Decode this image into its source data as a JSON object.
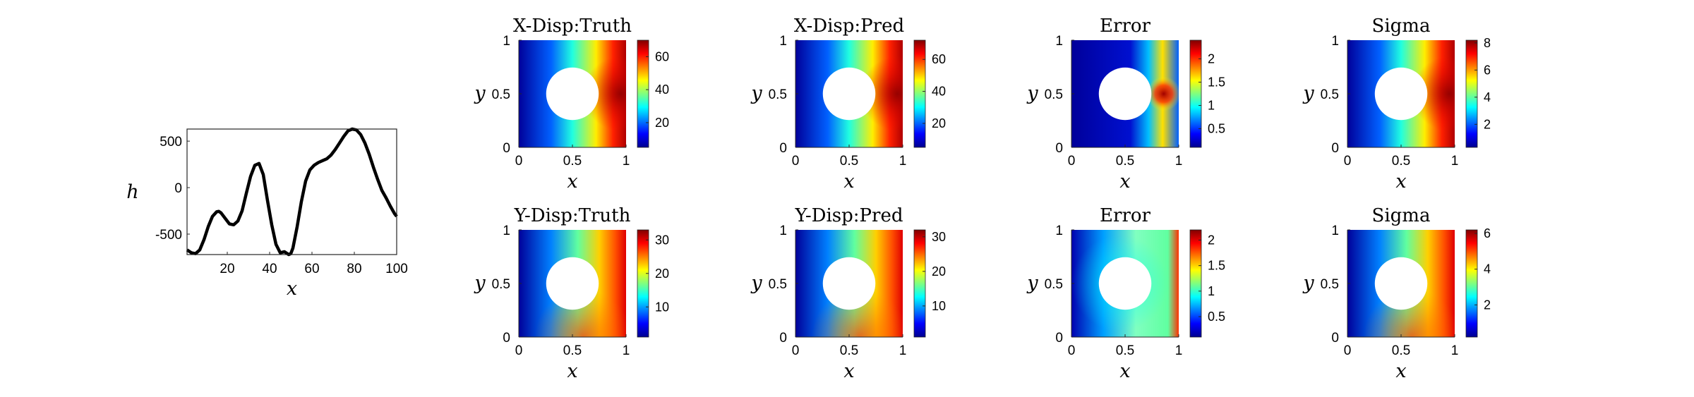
{
  "chart_data": [
    {
      "type": "line",
      "xlabel": "x",
      "ylabel": "h",
      "xlim": [
        1,
        100
      ],
      "ylim": [
        -720,
        630
      ],
      "xticks": [
        "20",
        "40",
        "60",
        "80",
        "100"
      ],
      "yticks": [
        "500",
        "0",
        "-500"
      ],
      "series": [
        {
          "x": [
            1,
            3,
            5,
            7,
            9,
            11,
            13,
            15,
            16,
            17,
            19,
            21,
            23,
            25,
            27,
            29,
            31,
            33,
            35,
            37,
            39,
            41,
            43,
            45,
            47,
            49,
            50,
            51,
            53,
            55,
            57,
            59,
            61,
            63,
            65,
            67,
            69,
            71,
            73,
            75,
            77,
            79,
            81,
            83,
            85,
            87,
            89,
            91,
            93,
            95,
            97,
            99,
            100
          ],
          "y": [
            -670,
            -700,
            -710,
            -670,
            -560,
            -420,
            -310,
            -260,
            -255,
            -270,
            -330,
            -390,
            -400,
            -360,
            -250,
            -60,
            120,
            240,
            260,
            140,
            -140,
            -400,
            -610,
            -700,
            -690,
            -720,
            -710,
            -650,
            -420,
            -150,
            70,
            190,
            240,
            270,
            290,
            310,
            350,
            410,
            480,
            550,
            610,
            630,
            620,
            570,
            480,
            360,
            220,
            90,
            -30,
            -110,
            -200,
            -280,
            -310
          ]
        }
      ]
    },
    {
      "type": "heatmap",
      "title": "X-Disp:Truth",
      "xlabel": "x",
      "ylabel": "y",
      "xlim": [
        0,
        1
      ],
      "ylim": [
        0,
        1
      ],
      "xticks": [
        "0",
        "0.5",
        "1"
      ],
      "yticks": [
        "1",
        "0.5",
        "0"
      ],
      "clim": [
        5,
        70
      ],
      "colorbar_ticks": [
        "60",
        "40",
        "20"
      ],
      "colormap": "jet"
    },
    {
      "type": "heatmap",
      "title": "X-Disp:Pred",
      "xlabel": "x",
      "ylabel": "y",
      "xlim": [
        0,
        1
      ],
      "ylim": [
        0,
        1
      ],
      "xticks": [
        "0",
        "0.5",
        "1"
      ],
      "yticks": [
        "1",
        "0.5",
        "0"
      ],
      "clim": [
        5,
        72
      ],
      "colorbar_ticks": [
        "60",
        "40",
        "20"
      ],
      "colormap": "jet"
    },
    {
      "type": "heatmap",
      "title": "Error",
      "xlabel": "x",
      "ylabel": "y",
      "xlim": [
        0,
        1
      ],
      "ylim": [
        0,
        1
      ],
      "xticks": [
        "0",
        "0.5",
        "1"
      ],
      "yticks": [
        "1",
        "0.5",
        "0"
      ],
      "clim": [
        0.1,
        2.4
      ],
      "colorbar_ticks": [
        "2",
        "1.5",
        "1",
        "0.5"
      ],
      "colormap": "jet"
    },
    {
      "type": "heatmap",
      "title": "Sigma",
      "xlabel": "x",
      "ylabel": "y",
      "xlim": [
        0,
        1
      ],
      "ylim": [
        0,
        1
      ],
      "xticks": [
        "0",
        "0.5",
        "1"
      ],
      "yticks": [
        "1",
        "0.5",
        "0"
      ],
      "clim": [
        0.3,
        8.2
      ],
      "colorbar_ticks": [
        "8",
        "6",
        "4",
        "2"
      ],
      "colormap": "jet"
    },
    {
      "type": "heatmap",
      "title": "Y-Disp:Truth",
      "xlabel": "x",
      "ylabel": "y",
      "xlim": [
        0,
        1
      ],
      "ylim": [
        0,
        1
      ],
      "xticks": [
        "0",
        "0.5",
        "1"
      ],
      "yticks": [
        "1",
        "0.5",
        "0"
      ],
      "clim": [
        1,
        33
      ],
      "colorbar_ticks": [
        "30",
        "20",
        "10"
      ],
      "colormap": "jet"
    },
    {
      "type": "heatmap",
      "title": "Y-Disp:Pred",
      "xlabel": "x",
      "ylabel": "y",
      "xlim": [
        0,
        1
      ],
      "ylim": [
        0,
        1
      ],
      "xticks": [
        "0",
        "0.5",
        "1"
      ],
      "yticks": [
        "1",
        "0.5",
        "0"
      ],
      "clim": [
        1,
        32
      ],
      "colorbar_ticks": [
        "30",
        "20",
        "10"
      ],
      "colormap": "jet"
    },
    {
      "type": "heatmap",
      "title": "Error",
      "xlabel": "x",
      "ylabel": "y",
      "xlim": [
        0,
        1
      ],
      "ylim": [
        0,
        1
      ],
      "xticks": [
        "0",
        "0.5",
        "1"
      ],
      "yticks": [
        "1",
        "0.5",
        "0"
      ],
      "clim": [
        0.1,
        2.2
      ],
      "colorbar_ticks": [
        "2",
        "1.5",
        "1",
        "0.5"
      ],
      "colormap": "jet"
    },
    {
      "type": "heatmap",
      "title": "Sigma",
      "xlabel": "x",
      "ylabel": "y",
      "xlim": [
        0,
        1
      ],
      "ylim": [
        0,
        1
      ],
      "xticks": [
        "0",
        "0.5",
        "1"
      ],
      "yticks": [
        "1",
        "0.5",
        "0"
      ],
      "clim": [
        0.2,
        6.2
      ],
      "colorbar_ticks": [
        "6",
        "4",
        "2"
      ],
      "colormap": "jet"
    }
  ]
}
